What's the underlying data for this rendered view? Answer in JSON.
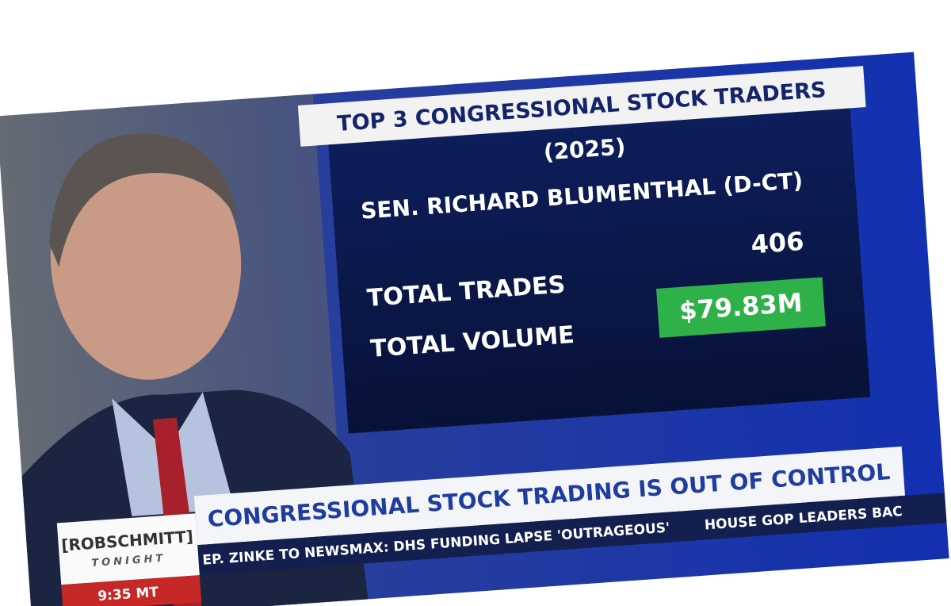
{
  "graphic": {
    "title": "TOP 3 CONGRESSIONAL STOCK TRADERS",
    "year": "(2025)",
    "name": "SEN. RICHARD BLUMENTHAL (D-CT)",
    "rows": [
      {
        "label": "TOTAL TRADES",
        "value": 406
      },
      {
        "label": "TOTAL VOLUME",
        "value": "$79.83M"
      }
    ]
  },
  "lower_third": {
    "logo": "[ROBSCHMITT]",
    "logo_sub": "TONIGHT",
    "headline": "CONGRESSIONAL STOCK TRADING IS OUT OF CONTROL",
    "time": "9:35 MT",
    "ticker": [
      "EP. ZINKE TO NEWSMAX: DHS FUNDING LAPSE 'OUTRAGEOUS'",
      "HOUSE GOP LEADERS BAC"
    ]
  }
}
